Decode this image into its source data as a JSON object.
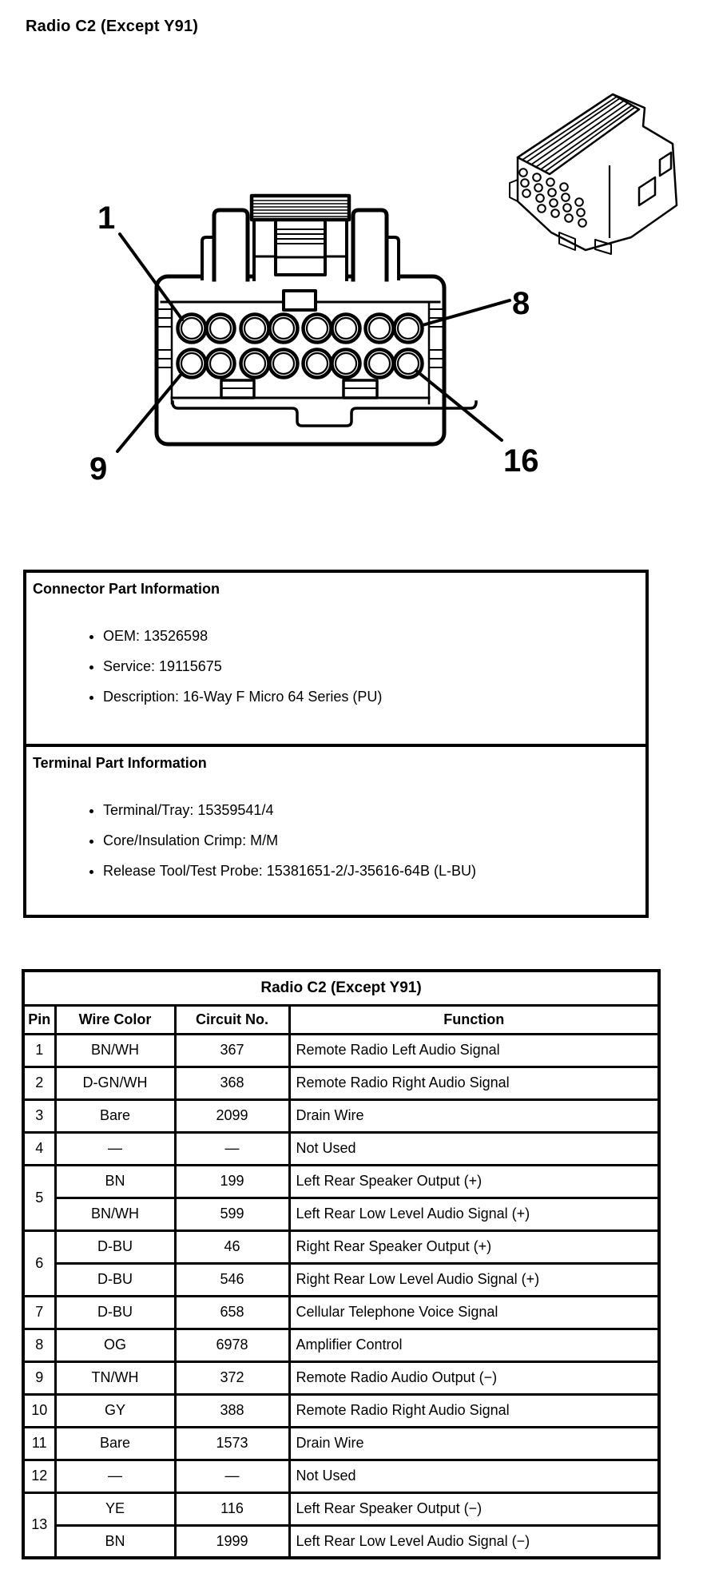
{
  "page": {
    "title": "Radio C2 (Except Y91)"
  },
  "colors": {
    "ink": "#000000",
    "paper": "#ffffff"
  },
  "diagram": {
    "pin_labels": {
      "top_left": "1",
      "top_right": "8",
      "bottom_left": "9",
      "bottom_right": "16"
    }
  },
  "connector_info": {
    "title": "Connector Part Information",
    "items": [
      "OEM: 13526598",
      "Service: 19115675",
      "Description: 16-Way F Micro 64 Series (PU)"
    ]
  },
  "terminal_info": {
    "title": "Terminal Part Information",
    "items": [
      "Terminal/Tray: 15359541/4",
      "Core/Insulation Crimp: M/M",
      "Release Tool/Test Probe: 15381651-2/J-35616-64B (L-BU)"
    ]
  },
  "pinout_table": {
    "title": "Radio C2 (Except Y91)",
    "columns": [
      "Pin",
      "Wire Color",
      "Circuit No.",
      "Function"
    ],
    "rows": [
      {
        "pin": "1",
        "span": 1,
        "wire": "BN/WH",
        "circuit": "367",
        "function": "Remote Radio Left Audio Signal"
      },
      {
        "pin": "2",
        "span": 1,
        "wire": "D-GN/WH",
        "circuit": "368",
        "function": "Remote Radio Right Audio Signal"
      },
      {
        "pin": "3",
        "span": 1,
        "wire": "Bare",
        "circuit": "2099",
        "function": "Drain Wire"
      },
      {
        "pin": "4",
        "span": 1,
        "wire": "—",
        "circuit": "—",
        "function": "Not Used"
      },
      {
        "pin": "5",
        "span": 2,
        "wire": "BN",
        "circuit": "199",
        "function": "Left Rear Speaker Output (+)"
      },
      {
        "pin": null,
        "wire": "BN/WH",
        "circuit": "599",
        "function": "Left Rear Low Level Audio Signal (+)"
      },
      {
        "pin": "6",
        "span": 2,
        "wire": "D-BU",
        "circuit": "46",
        "function": "Right Rear Speaker Output (+)"
      },
      {
        "pin": null,
        "wire": "D-BU",
        "circuit": "546",
        "function": "Right Rear Low Level Audio Signal (+)"
      },
      {
        "pin": "7",
        "span": 1,
        "wire": "D-BU",
        "circuit": "658",
        "function": "Cellular Telephone Voice Signal"
      },
      {
        "pin": "8",
        "span": 1,
        "wire": "OG",
        "circuit": "6978",
        "function": "Amplifier Control"
      },
      {
        "pin": "9",
        "span": 1,
        "wire": "TN/WH",
        "circuit": "372",
        "function": "Remote Radio Audio Output (−)"
      },
      {
        "pin": "10",
        "span": 1,
        "wire": "GY",
        "circuit": "388",
        "function": "Remote Radio Right Audio Signal"
      },
      {
        "pin": "11",
        "span": 1,
        "wire": "Bare",
        "circuit": "1573",
        "function": "Drain Wire"
      },
      {
        "pin": "12",
        "span": 1,
        "wire": "—",
        "circuit": "—",
        "function": "Not Used"
      },
      {
        "pin": "13",
        "span": 2,
        "wire": "YE",
        "circuit": "116",
        "function": "Left Rear Speaker Output (−)"
      },
      {
        "pin": null,
        "wire": "BN",
        "circuit": "1999",
        "function": "Left Rear Low Level Audio Signal (−)"
      }
    ]
  }
}
